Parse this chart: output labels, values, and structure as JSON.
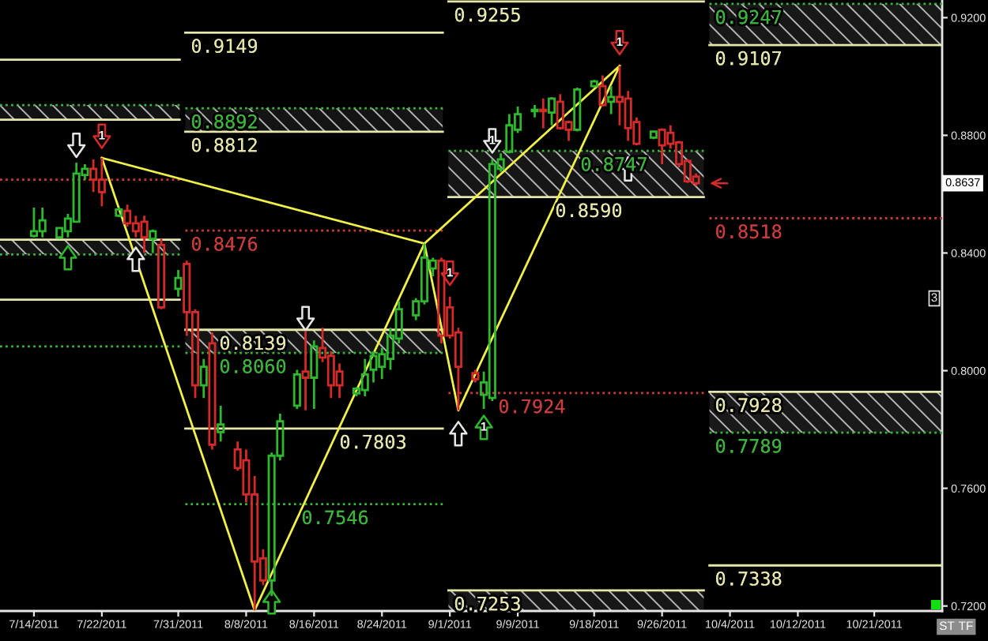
{
  "chart_data": {
    "type": "candlestick",
    "x": [
      "2011-07-14",
      "2011-07-15",
      "2011-07-17",
      "2011-07-18",
      "2011-07-19",
      "2011-07-20",
      "2011-07-21",
      "2011-07-22",
      "2011-07-24",
      "2011-07-25",
      "2011-07-26",
      "2011-07-27",
      "2011-07-28",
      "2011-07-29",
      "2011-07-31",
      "2011-08-01",
      "2011-08-02",
      "2011-08-03",
      "2011-08-04",
      "2011-08-05",
      "2011-08-07",
      "2011-08-08",
      "2011-08-09",
      "2011-08-10",
      "2011-08-11",
      "2011-08-12",
      "2011-08-14",
      "2011-08-15",
      "2011-08-16",
      "2011-08-17",
      "2011-08-18",
      "2011-08-19",
      "2011-08-21",
      "2011-08-22",
      "2011-08-23",
      "2011-08-24",
      "2011-08-25",
      "2011-08-26",
      "2011-08-28",
      "2011-08-29",
      "2011-08-30",
      "2011-08-31",
      "2011-09-01",
      "2011-09-02",
      "2011-09-04",
      "2011-09-05",
      "2011-09-06",
      "2011-09-07",
      "2011-09-08",
      "2011-09-09",
      "2011-09-11",
      "2011-09-12",
      "2011-09-13",
      "2011-09-14",
      "2011-09-15",
      "2011-09-16",
      "2011-09-18",
      "2011-09-19",
      "2011-09-20",
      "2011-09-21",
      "2011-09-22",
      "2011-09-23",
      "2011-09-25",
      "2011-09-26",
      "2011-09-27",
      "2011-09-28",
      "2011-09-29",
      "2011-09-30"
    ],
    "ohlc": [
      [
        0.8458,
        0.8554,
        0.8453,
        0.8474
      ],
      [
        0.8474,
        0.8554,
        0.8453,
        0.8511
      ],
      [
        0.8453,
        0.8485,
        0.8448,
        0.8485
      ],
      [
        0.8474,
        0.8533,
        0.8453,
        0.8517
      ],
      [
        0.8506,
        0.8707,
        0.8506,
        0.867
      ],
      [
        0.8665,
        0.8702,
        0.8649,
        0.8686
      ],
      [
        0.8686,
        0.8718,
        0.8607,
        0.8649
      ],
      [
        0.8649,
        0.8723,
        0.8559,
        0.8607
      ],
      [
        0.8527,
        0.8554,
        0.8522,
        0.8548
      ],
      [
        0.8543,
        0.8564,
        0.849,
        0.8501
      ],
      [
        0.8501,
        0.8527,
        0.8453,
        0.8474
      ],
      [
        0.8506,
        0.8527,
        0.84,
        0.8453
      ],
      [
        0.8448,
        0.848,
        0.84,
        0.8474
      ],
      [
        0.8427,
        0.8448,
        0.8209,
        0.8215
      ],
      [
        0.8278,
        0.8342,
        0.8252,
        0.8315
      ],
      [
        0.8363,
        0.8374,
        0.8119,
        0.8199
      ],
      [
        0.8199,
        0.8209,
        0.7907,
        0.795
      ],
      [
        0.795,
        0.804,
        0.7907,
        0.8013
      ],
      [
        0.8093,
        0.813,
        0.7732,
        0.7748
      ],
      [
        0.7791,
        0.7881,
        0.7759,
        0.7817
      ],
      [
        0.7732,
        0.7759,
        0.766,
        0.7669
      ],
      [
        0.7695,
        0.7732,
        0.7552,
        0.7579
      ],
      [
        0.7579,
        0.7642,
        0.7185,
        0.7351
      ],
      [
        0.7362,
        0.7393,
        0.7271,
        0.7287
      ],
      [
        0.7287,
        0.7722,
        0.7234,
        0.7711
      ],
      [
        0.7711,
        0.7854,
        0.7695,
        0.7828
      ],
      [
        0.7881,
        0.8003,
        0.787,
        0.7987
      ],
      [
        0.7997,
        0.8135,
        0.7865,
        0.7976
      ],
      [
        0.7976,
        0.8103,
        0.787,
        0.8082
      ],
      [
        0.8077,
        0.8146,
        0.8029,
        0.8045
      ],
      [
        0.805,
        0.8066,
        0.7907,
        0.795
      ],
      [
        0.7997,
        0.8024,
        0.7907,
        0.795
      ],
      [
        0.7923,
        0.7944,
        0.7913,
        0.7939
      ],
      [
        0.7934,
        0.804,
        0.7913,
        0.7987
      ],
      [
        0.8003,
        0.8066,
        0.796,
        0.805
      ],
      [
        0.8013,
        0.8077,
        0.7971,
        0.8056
      ],
      [
        0.804,
        0.8146,
        0.8003,
        0.8119
      ],
      [
        0.8109,
        0.8236,
        0.8093,
        0.8209
      ],
      [
        0.8188,
        0.8246,
        0.8172,
        0.8236
      ],
      [
        0.8236,
        0.8432,
        0.8225,
        0.8384
      ],
      [
        0.8347,
        0.8384,
        0.8321,
        0.8374
      ],
      [
        0.8374,
        0.8384,
        0.8093,
        0.8119
      ],
      [
        0.8215,
        0.8252,
        0.8109,
        0.8119
      ],
      [
        0.813,
        0.8146,
        0.7865,
        0.8013
      ],
      [
        0.7992,
        0.8003,
        0.796,
        0.7971
      ],
      [
        0.7918,
        0.7997,
        0.787,
        0.796
      ],
      [
        0.7907,
        0.8718,
        0.7897,
        0.8702
      ],
      [
        0.8686,
        0.8739,
        0.8676,
        0.8718
      ],
      [
        0.8744,
        0.8872,
        0.8739,
        0.8834
      ],
      [
        0.8819,
        0.8898,
        0.8808,
        0.8872
      ],
      [
        0.8882,
        0.8903,
        0.8861,
        0.8887
      ],
      [
        0.8887,
        0.8925,
        0.8824,
        0.8882
      ],
      [
        0.8877,
        0.893,
        0.8834,
        0.8925
      ],
      [
        0.8914,
        0.894,
        0.8819,
        0.8824
      ],
      [
        0.8845,
        0.885,
        0.8781,
        0.8819
      ],
      [
        0.8819,
        0.8962,
        0.8813,
        0.8956
      ],
      [
        0.8967,
        0.8988,
        0.8962,
        0.8983
      ],
      [
        0.8967,
        0.9004,
        0.8898,
        0.8903
      ],
      [
        0.8914,
        0.8967,
        0.8872,
        0.893
      ],
      [
        0.893,
        0.9036,
        0.8834,
        0.8914
      ],
      [
        0.8925,
        0.8951,
        0.8781,
        0.8824
      ],
      [
        0.8845,
        0.8861,
        0.8766,
        0.8771
      ],
      [
        0.8792,
        0.8813,
        0.8787,
        0.8813
      ],
      [
        0.8819,
        0.8824,
        0.8702,
        0.8766
      ],
      [
        0.8808,
        0.8834,
        0.8755,
        0.8771
      ],
      [
        0.8776,
        0.8781,
        0.8691,
        0.8702
      ],
      [
        0.8713,
        0.8718,
        0.8638,
        0.8644
      ],
      [
        0.866,
        0.867,
        0.8628,
        0.8637
      ]
    ],
    "colors": [
      "#2eb82e",
      "#2eb82e",
      "#2eb82e",
      "#2eb82e",
      "#2eb82e",
      "#2eb82e",
      "#d42a2a",
      "#d42a2a",
      "#2eb82e",
      "#d42a2a",
      "#d42a2a",
      "#d42a2a",
      "#2eb82e",
      "#d42a2a",
      "#2eb82e",
      "#d42a2a",
      "#d42a2a",
      "#2eb82e",
      "#d42a2a",
      "#2eb82e",
      "#d42a2a",
      "#d42a2a",
      "#d42a2a",
      "#d42a2a",
      "#2eb82e",
      "#2eb82e",
      "#2eb82e",
      "#d42a2a",
      "#2eb82e",
      "#d42a2a",
      "#d42a2a",
      "#d42a2a",
      "#2eb82e",
      "#2eb82e",
      "#2eb82e",
      "#2eb82e",
      "#2eb82e",
      "#2eb82e",
      "#2eb82e",
      "#2eb82e",
      "#2eb82e",
      "#d42a2a",
      "#d42a2a",
      "#d42a2a",
      "#d42a2a",
      "#2eb82e",
      "#2eb82e",
      "#2eb82e",
      "#2eb82e",
      "#2eb82e",
      "#2eb82e",
      "#d42a2a",
      "#2eb82e",
      "#d42a2a",
      "#d42a2a",
      "#2eb82e",
      "#2eb82e",
      "#d42a2a",
      "#2eb82e",
      "#d42a2a",
      "#d42a2a",
      "#d42a2a",
      "#2eb82e",
      "#d42a2a",
      "#d42a2a",
      "#d42a2a",
      "#d42a2a",
      "#d42a2a"
    ],
    "series": [
      {
        "type": "line",
        "x": [
          "2011-07-10",
          "2011-07-31T04:00"
        ],
        "values": [
          0.9057,
          0.9057
        ],
        "color": "#e6e6aa",
        "line_style": "solid"
      },
      {
        "type": "line",
        "x": [
          "2011-07-10",
          "2011-07-31T04:00"
        ],
        "values": [
          0.8903,
          0.8903
        ],
        "color": "#3cb43c",
        "line_style": "dotted"
      },
      {
        "type": "line",
        "x": [
          "2011-07-10",
          "2011-07-31T04:00"
        ],
        "values": [
          0.8853,
          0.8853
        ],
        "color": "#e6e6aa",
        "line_style": "solid",
        "lower": [
          0.8853,
          0.8853
        ],
        "upper": [
          0.8903,
          0.8903
        ]
      },
      {
        "type": "line",
        "x": [
          "2011-07-10",
          "2011-07-31T04:00"
        ],
        "values": [
          0.8649,
          0.8649
        ],
        "color": "#c83c3c",
        "line_style": "dotted"
      },
      {
        "type": "line",
        "x": [
          "2011-07-10",
          "2011-07-31T04:00"
        ],
        "values": [
          0.8445,
          0.8445
        ],
        "color": "#e6e6aa",
        "line_style": "solid"
      },
      {
        "type": "line",
        "x": [
          "2011-07-10",
          "2011-07-31T04:00"
        ],
        "values": [
          0.8395,
          0.8395
        ],
        "color": "#3cb43c",
        "line_style": "dotted",
        "lower": [
          0.8395,
          0.8395
        ],
        "upper": [
          0.8445,
          0.8445
        ]
      },
      {
        "type": "line",
        "x": [
          "2011-07-10",
          "2011-07-31T04:00"
        ],
        "values": [
          0.8241,
          0.8241
        ],
        "color": "#e6e6aa",
        "line_style": "solid"
      },
      {
        "type": "line",
        "x": [
          "2011-07-10",
          "2011-07-31T04:00"
        ],
        "values": [
          0.8082,
          0.8082
        ],
        "color": "#3cb43c",
        "line_style": "dotted"
      },
      {
        "type": "line",
        "name": "0.9149",
        "x": [
          "2011-07-31T20:00",
          "2011-08-31T04:00"
        ],
        "values": [
          0.9149,
          0.9149
        ],
        "color": "#e6e6aa",
        "line_style": "solid"
      },
      {
        "type": "line",
        "name": "0.8892",
        "x": [
          "2011-07-31T20:00",
          "2011-08-31T04:00"
        ],
        "values": [
          0.8892,
          0.8892
        ],
        "color": "#3cb43c",
        "line_style": "dotted"
      },
      {
        "type": "line",
        "name": "0.8812",
        "x": [
          "2011-07-31T20:00",
          "2011-08-31T04:00"
        ],
        "values": [
          0.8812,
          0.8812
        ],
        "color": "#e6e6aa",
        "line_style": "solid",
        "lower": [
          0.8812,
          0.8812
        ],
        "upper": [
          0.8892,
          0.8892
        ]
      },
      {
        "type": "line",
        "name": "0.8476",
        "x": [
          "2011-07-31T20:00",
          "2011-08-31T04:00"
        ],
        "values": [
          0.8476,
          0.8476
        ],
        "color": "#c83c3c",
        "line_style": "dotted"
      },
      {
        "type": "line",
        "name": "0.8139",
        "x": [
          "2011-07-31T20:00",
          "2011-08-31T04:00"
        ],
        "values": [
          0.8139,
          0.8139
        ],
        "color": "#e6e6aa",
        "line_style": "solid"
      },
      {
        "type": "line",
        "name": "0.8060",
        "x": [
          "2011-07-31T20:00",
          "2011-08-31T04:00"
        ],
        "values": [
          0.806,
          0.806
        ],
        "color": "#3cb43c",
        "line_style": "dotted",
        "lower": [
          0.806,
          0.806
        ],
        "upper": [
          0.8139,
          0.8139
        ]
      },
      {
        "type": "line",
        "name": "0.7803",
        "x": [
          "2011-07-31T20:00",
          "2011-08-31T04:00"
        ],
        "values": [
          0.7803,
          0.7803
        ],
        "color": "#e6e6aa",
        "line_style": "solid"
      },
      {
        "type": "line",
        "name": "0.7546",
        "x": [
          "2011-07-31T20:00",
          "2011-08-31T04:00"
        ],
        "values": [
          0.7546,
          0.7546
        ],
        "color": "#3cb43c",
        "line_style": "dotted"
      },
      {
        "type": "line",
        "name": "0.9255",
        "x": [
          "2011-08-31T20:00",
          "2011-09-30T22:00"
        ],
        "values": [
          0.9255,
          0.9255
        ],
        "color": "#e6e6aa",
        "line_style": "solid"
      },
      {
        "type": "line",
        "name": "0.8747",
        "x": [
          "2011-08-31T20:00",
          "2011-09-30T22:00"
        ],
        "values": [
          0.8747,
          0.8747
        ],
        "color": "#3cb43c",
        "line_style": "dotted"
      },
      {
        "type": "line",
        "name": "0.8590",
        "x": [
          "2011-08-31T20:00",
          "2011-09-30T22:00"
        ],
        "values": [
          0.859,
          0.859
        ],
        "color": "#e6e6aa",
        "line_style": "solid",
        "lower": [
          0.859,
          0.859
        ],
        "upper": [
          0.8747,
          0.8747
        ]
      },
      {
        "type": "line",
        "name": "0.7924",
        "x": [
          "2011-08-31T20:00",
          "2011-09-30T22:00"
        ],
        "values": [
          0.7924,
          0.7924
        ],
        "color": "#c83c3c",
        "line_style": "dotted"
      },
      {
        "type": "line",
        "name": "0.7253",
        "x": [
          "2011-08-31T20:00",
          "2011-09-30T22:00"
        ],
        "values": [
          0.7253,
          0.7253
        ],
        "color": "#e6e6aa",
        "line_style": "solid",
        "lower": [
          0.7183,
          0.7183
        ],
        "upper": [
          0.7253,
          0.7253
        ]
      },
      {
        "type": "line",
        "name": "0.9247",
        "x": [
          "2011-10-01T14:00",
          "2011-10-29"
        ],
        "values": [
          0.9247,
          0.9247
        ],
        "color": "#3cb43c",
        "line_style": "dotted"
      },
      {
        "type": "line",
        "name": "0.9107",
        "x": [
          "2011-10-01T14:00",
          "2011-10-29"
        ],
        "values": [
          0.9107,
          0.9107
        ],
        "color": "#e6e6aa",
        "line_style": "solid",
        "lower": [
          0.9107,
          0.9107
        ],
        "upper": [
          0.9247,
          0.9247
        ]
      },
      {
        "type": "line",
        "name": "0.8518",
        "x": [
          "2011-10-01T14:00",
          "2011-10-29"
        ],
        "values": [
          0.8518,
          0.8518
        ],
        "color": "#c83c3c",
        "line_style": "dotted"
      },
      {
        "type": "line",
        "name": "0.7928",
        "x": [
          "2011-10-01T14:00",
          "2011-10-29"
        ],
        "values": [
          0.7928,
          0.7928
        ],
        "color": "#e6e6aa",
        "line_style": "solid"
      },
      {
        "type": "line",
        "name": "0.7789",
        "x": [
          "2011-10-01T14:00",
          "2011-10-29"
        ],
        "values": [
          0.7789,
          0.7789
        ],
        "color": "#3cb43c",
        "line_style": "dotted",
        "lower": [
          0.7789,
          0.7789
        ],
        "upper": [
          0.7928,
          0.7928
        ]
      },
      {
        "type": "line",
        "name": "0.7338",
        "x": [
          "2011-10-01T14:00",
          "2011-10-29"
        ],
        "values": [
          0.7338,
          0.7338
        ],
        "color": "#e6e6aa",
        "line_style": "solid"
      },
      {
        "type": "line",
        "x": [
          "2011-07-22",
          "2011-08-09",
          "2011-08-29",
          "2011-09-02",
          "2011-09-21"
        ],
        "values": [
          0.8723,
          0.7185,
          0.8432,
          0.7865,
          0.9036
        ],
        "color": "#f0f046",
        "line_style": "solid"
      },
      {
        "type": "line",
        "x": [
          "2011-07-22",
          "2011-08-29"
        ],
        "values": [
          0.8723,
          0.8432
        ],
        "color": "#f0f046",
        "line_style": "solid"
      },
      {
        "type": "line",
        "x": [
          "2011-08-29",
          "2011-09-21"
        ],
        "values": [
          0.8432,
          0.9036
        ],
        "color": "#f0f046",
        "line_style": "solid"
      },
      {
        "type": "scatter",
        "marker": "triangle",
        "color": "#e6e6e6",
        "x": [
          "2011-07-19",
          "2011-07-26",
          "2011-08-15",
          "2011-09-02",
          "2011-09-06",
          "2011-09-22"
        ],
        "values": [
          0.8766,
          0.8379,
          0.8177,
          0.7786,
          0.8781,
          0.8686
        ]
      },
      {
        "type": "scatter",
        "marker": "triangle",
        "color": "#d42a2a",
        "x": [
          "2011-07-22",
          "2011-09-01",
          "2011-09-21"
        ],
        "values": [
          0.8797,
          0.8331,
          0.9115
        ]
      },
      {
        "type": "scatter",
        "marker": "triangle",
        "color": "#2eb82e",
        "x": [
          "2011-07-18",
          "2011-08-11",
          "2011-09-05"
        ],
        "values": [
          0.8384,
          0.7214,
          0.7807
        ]
      }
    ],
    "annotations": [
      {
        "text": "1",
        "x": "2011-07-22",
        "y": 0.8797
      },
      {
        "text": "1",
        "x": "2011-09-01",
        "y": 0.8331
      },
      {
        "text": "1",
        "x": "2011-09-21",
        "y": 0.9115
      },
      {
        "text": "1",
        "x": "2011-09-06",
        "y": 0.8781
      },
      {
        "text": "1",
        "x": "2011-09-05",
        "y": 0.7807
      },
      {
        "text": "0.8637",
        "y": 0.8637
      },
      "3",
      "ST",
      "TF"
    ],
    "xlim": [
      "2011-07-10",
      "2011-10-29"
    ],
    "ylim": [
      0.7183,
      0.926
    ],
    "xticks": [
      {
        "value": "2011-07-14",
        "label": "7/14/2011"
      },
      {
        "value": "2011-07-22",
        "label": "7/22/2011"
      },
      {
        "value": "2011-07-31",
        "label": "7/31/2011"
      },
      {
        "value": "2011-08-08",
        "label": "8/8/2011"
      },
      {
        "value": "2011-08-16",
        "label": "8/16/2011"
      },
      {
        "value": "2011-08-24",
        "label": "8/24/2011"
      },
      {
        "value": "2011-09-01",
        "label": "9/1/2011"
      },
      {
        "value": "2011-09-09",
        "label": "9/9/2011"
      },
      {
        "value": "2011-09-18",
        "label": "9/18/2011"
      },
      {
        "value": "2011-09-26",
        "label": "9/26/2011"
      },
      {
        "value": "2011-10-04",
        "label": "10/4/2011"
      },
      {
        "value": "2011-10-12",
        "label": "10/12/2011"
      },
      {
        "value": "2011-10-21",
        "label": "10/21/2011"
      }
    ],
    "yticks": [
      {
        "value": 0.72,
        "label": "0.7200"
      },
      {
        "value": 0.76,
        "label": "0.7600"
      },
      {
        "value": 0.8,
        "label": "0.8000"
      },
      {
        "value": 0.84,
        "label": "0.8400"
      },
      {
        "value": 0.88,
        "label": "0.8800"
      },
      {
        "value": 0.92,
        "label": "0.9200"
      }
    ]
  }
}
